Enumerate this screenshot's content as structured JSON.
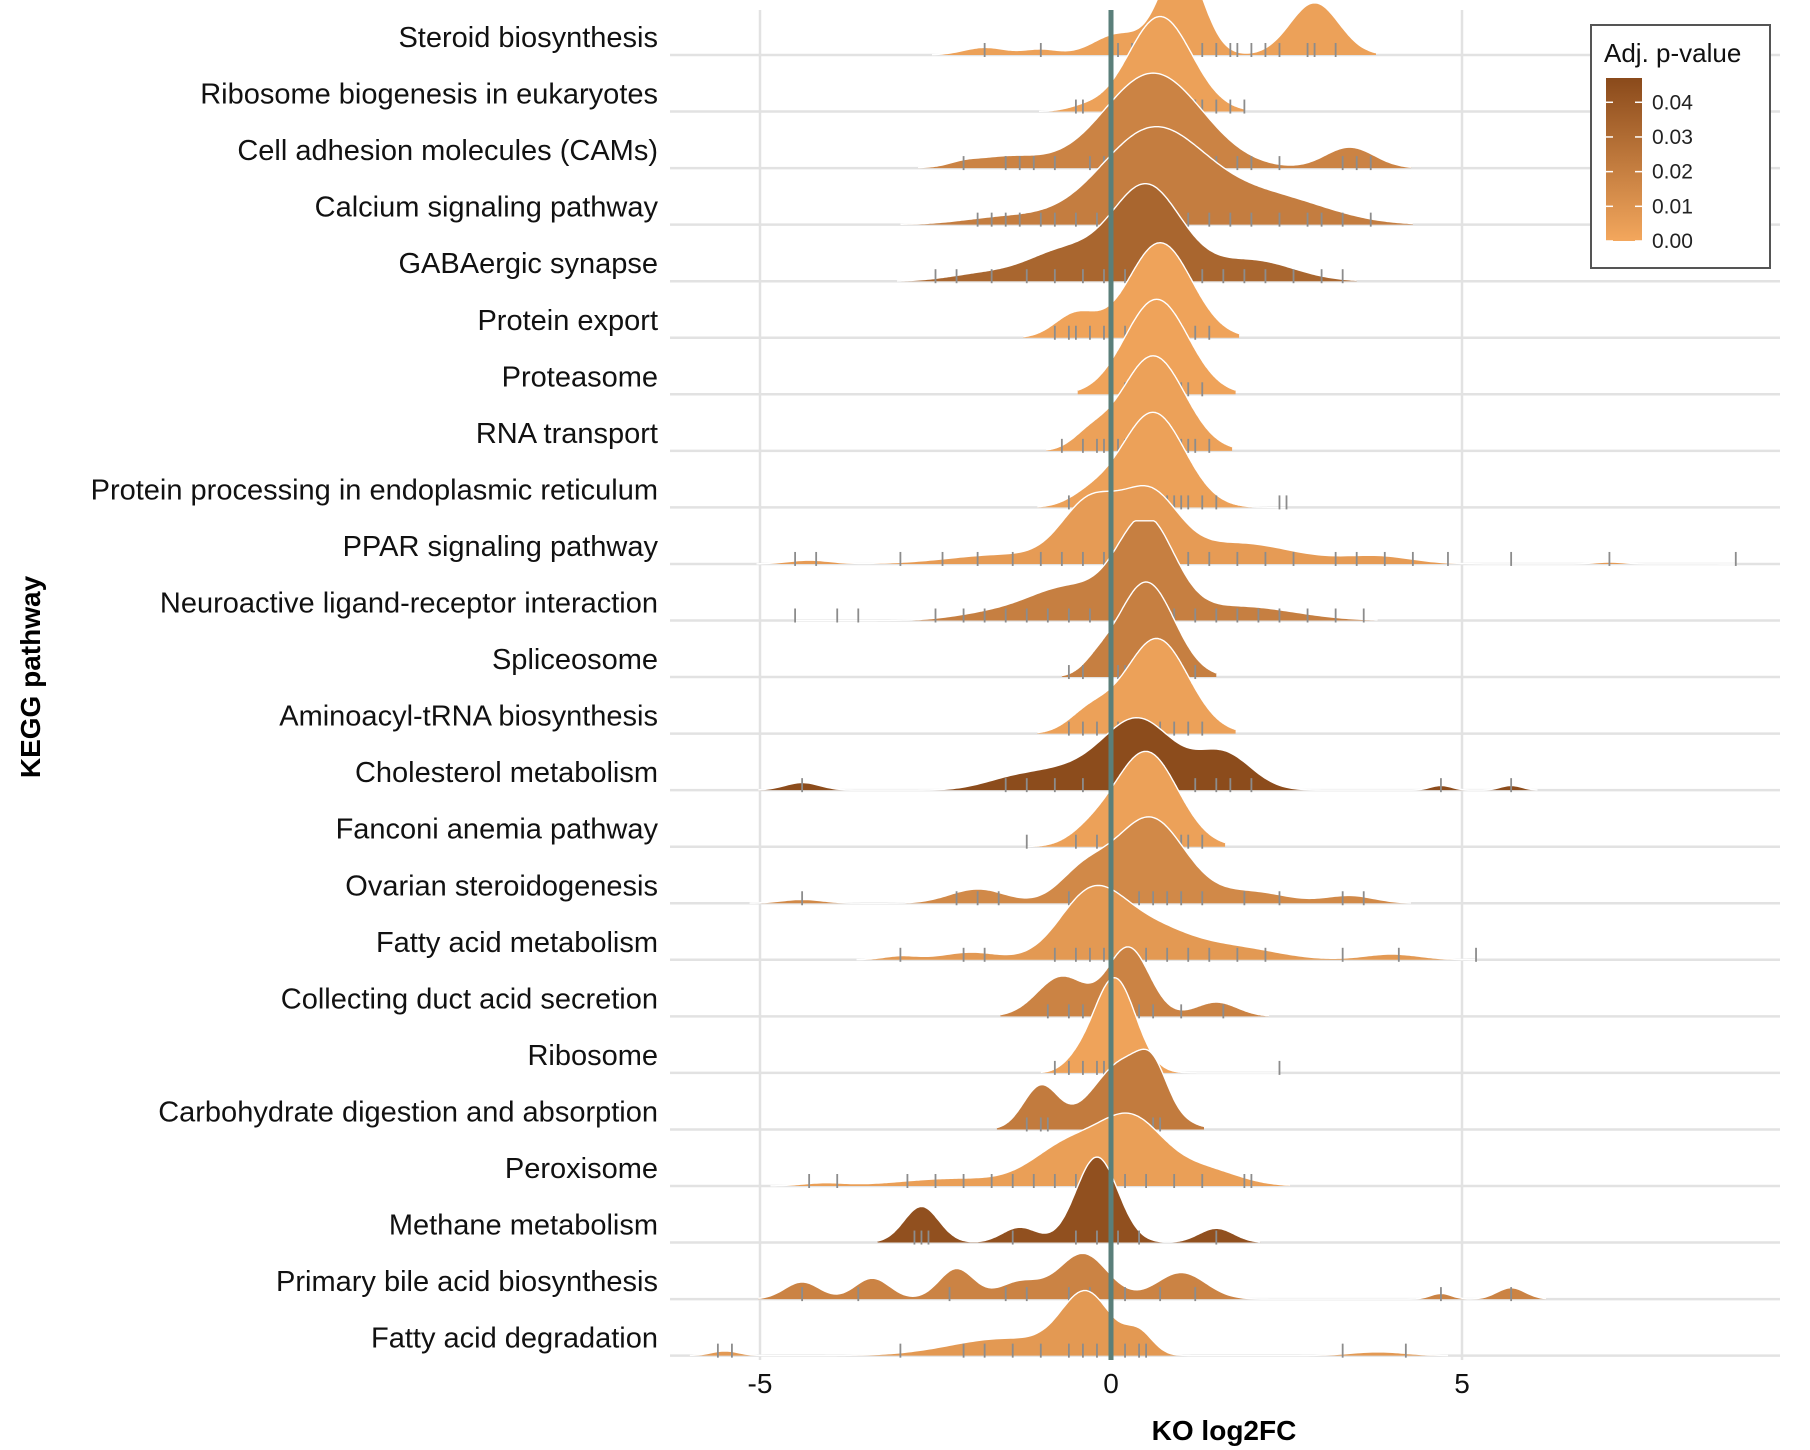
{
  "chart_data": {
    "type": "ridgeline",
    "xlabel": "KO log2FC",
    "ylabel": "KEGG pathway",
    "xlim": [
      -6.5,
      9.3
    ],
    "x_ticks": [
      -5,
      0,
      5
    ],
    "x_tick_labels": [
      "-5",
      "0",
      "5"
    ],
    "reference_line_x": 0,
    "reference_line_color": "#5a7f7a",
    "grid": true,
    "legend": {
      "title": "Adj. p-value",
      "position": "top-right",
      "ticks": [
        0.04,
        0.03,
        0.02,
        0.01,
        0.0
      ],
      "tick_labels": [
        "0.04",
        "0.03",
        "0.02",
        "0.01",
        "0.00"
      ],
      "range": [
        0,
        0.047
      ],
      "color_low": "#f3a75d",
      "color_high": "#8a4a1b"
    },
    "rug_color": "#8c8c8c",
    "pathways": [
      {
        "name": "Steroid biosynthesis",
        "padj": 0.003,
        "peaks": [
          [
            1.0,
            0.3,
            1.0
          ],
          [
            2.9,
            0.35,
            0.55
          ],
          [
            0.1,
            0.35,
            0.22
          ],
          [
            -1.8,
            0.3,
            0.08
          ],
          [
            -1.0,
            0.25,
            0.06
          ]
        ],
        "rug": [
          -1.8,
          -1.0,
          0.1,
          0.3,
          0.5,
          0.8,
          1.3,
          1.5,
          1.7,
          1.8,
          2.0,
          2.2,
          2.4,
          2.8,
          2.9,
          3.2
        ]
      },
      {
        "name": "Ribosome biogenesis in eukaryotes",
        "padj": 0.003,
        "peaks": [
          [
            0.7,
            0.45,
            1.0
          ],
          [
            -0.4,
            0.25,
            0.04
          ]
        ],
        "rug": [
          -0.5,
          -0.4,
          0.1,
          0.2,
          0.3,
          0.4,
          0.5,
          0.6,
          0.7,
          0.8,
          0.9,
          1.0,
          1.1,
          1.2,
          1.3,
          1.5,
          1.7,
          1.9
        ]
      },
      {
        "name": "Cell adhesion molecules (CAMs)",
        "padj": 0.018,
        "peaks": [
          [
            0.6,
            0.7,
            1.0
          ],
          [
            3.4,
            0.35,
            0.22
          ],
          [
            -1.5,
            0.5,
            0.12
          ],
          [
            -2.1,
            0.2,
            0.03
          ]
        ],
        "rug": [
          -2.1,
          -1.5,
          -1.3,
          -1.1,
          -0.8,
          -0.3,
          -0.1,
          0.1,
          0.3,
          0.5,
          0.7,
          0.9,
          1.1,
          1.3,
          1.5,
          1.8,
          2.0,
          2.4,
          3.3,
          3.5,
          3.7
        ]
      },
      {
        "name": "Calcium signaling pathway",
        "padj": 0.021,
        "peaks": [
          [
            0.6,
            0.75,
            1.0
          ],
          [
            2.3,
            0.8,
            0.28
          ],
          [
            -1.5,
            0.6,
            0.08
          ]
        ],
        "rug": [
          -1.9,
          -1.7,
          -1.5,
          -1.3,
          -1.0,
          -0.8,
          -0.5,
          -0.2,
          0.1,
          0.3,
          0.5,
          0.7,
          0.9,
          1.1,
          1.4,
          1.7,
          2.0,
          2.4,
          2.8,
          3.0,
          3.3,
          3.7
        ]
      },
      {
        "name": "GABAergic synapse",
        "padj": 0.033,
        "peaks": [
          [
            0.5,
            0.5,
            1.0
          ],
          [
            -0.7,
            0.5,
            0.3
          ],
          [
            2.0,
            0.6,
            0.22
          ],
          [
            -1.8,
            0.5,
            0.08
          ]
        ],
        "rug": [
          -2.5,
          -2.2,
          -1.7,
          -1.2,
          -0.8,
          -0.4,
          -0.1,
          0.2,
          0.4,
          0.6,
          0.8,
          1.0,
          1.3,
          1.6,
          1.9,
          2.2,
          2.6,
          3.0,
          3.3
        ]
      },
      {
        "name": "Protein export",
        "padj": 0.002,
        "peaks": [
          [
            0.7,
            0.45,
            1.0
          ],
          [
            -0.5,
            0.3,
            0.25
          ]
        ],
        "rug": [
          -0.8,
          -0.6,
          -0.5,
          -0.3,
          -0.1,
          0.2,
          0.4,
          0.6,
          0.8,
          1.0,
          1.2,
          1.4
        ]
      },
      {
        "name": "Proteasome",
        "padj": 0.002,
        "peaks": [
          [
            0.65,
            0.45,
            1.0
          ]
        ],
        "rug": [
          0.0,
          0.2,
          0.4,
          0.5,
          0.6,
          0.7,
          0.8,
          0.9,
          1.0,
          1.1,
          1.3
        ]
      },
      {
        "name": "RNA transport",
        "padj": 0.003,
        "peaks": [
          [
            0.6,
            0.45,
            1.0
          ],
          [
            -0.3,
            0.25,
            0.15
          ]
        ],
        "rug": [
          -0.7,
          -0.4,
          -0.2,
          -0.1,
          0.0,
          0.1,
          0.2,
          0.3,
          0.4,
          0.5,
          0.6,
          0.7,
          0.8,
          0.9,
          1.0,
          1.1,
          1.2,
          1.4
        ]
      },
      {
        "name": "Protein processing in endoplasmic reticulum",
        "padj": 0.003,
        "peaks": [
          [
            0.6,
            0.45,
            1.0
          ],
          [
            -0.3,
            0.3,
            0.12
          ]
        ],
        "rug": [
          -0.6,
          -0.3,
          -0.1,
          0.0,
          0.1,
          0.2,
          0.3,
          0.4,
          0.5,
          0.6,
          0.7,
          0.8,
          0.9,
          1.0,
          1.1,
          1.3,
          1.5,
          2.4,
          2.5
        ]
      },
      {
        "name": "PPAR signaling pathway",
        "padj": 0.006,
        "peaks": [
          [
            -0.3,
            0.4,
            0.62
          ],
          [
            0.55,
            0.4,
            0.68
          ],
          [
            1.8,
            0.8,
            0.22
          ],
          [
            -1.5,
            0.8,
            0.1
          ],
          [
            3.8,
            0.5,
            0.08
          ],
          [
            -4.3,
            0.3,
            0.04
          ],
          [
            7.1,
            0.2,
            0.02
          ]
        ],
        "rug": [
          -4.5,
          -4.2,
          -3.0,
          -2.4,
          -1.9,
          -1.4,
          -1.0,
          -0.7,
          -0.4,
          -0.1,
          0.2,
          0.5,
          0.8,
          1.1,
          1.4,
          1.8,
          2.2,
          2.6,
          3.2,
          3.5,
          3.9,
          4.3,
          4.8,
          5.7,
          7.1,
          8.9
        ]
      },
      {
        "name": "Neuroactive ligand-receptor interaction",
        "padj": 0.02,
        "peaks": [
          [
            0.5,
            0.4,
            1.0
          ],
          [
            -0.6,
            0.6,
            0.35
          ],
          [
            1.8,
            0.8,
            0.15
          ],
          [
            -1.8,
            0.5,
            0.06
          ]
        ],
        "rug": [
          -4.5,
          -3.9,
          -3.6,
          -2.5,
          -2.1,
          -1.8,
          -1.5,
          -1.2,
          -0.9,
          -0.6,
          -0.3,
          0.0,
          0.3,
          0.6,
          0.9,
          1.2,
          1.5,
          1.8,
          2.1,
          2.4,
          2.8,
          3.2,
          3.6
        ]
      },
      {
        "name": "Spliceosome",
        "padj": 0.02,
        "peaks": [
          [
            0.5,
            0.4,
            1.0
          ],
          [
            -0.2,
            0.2,
            0.1
          ]
        ],
        "rug": [
          -0.6,
          -0.4,
          0.1,
          0.2,
          0.3,
          0.4,
          0.5,
          0.6,
          0.7,
          0.8,
          0.9,
          1.0,
          1.2
        ]
      },
      {
        "name": "Aminoacyl-tRNA biosynthesis",
        "padj": 0.003,
        "peaks": [
          [
            0.65,
            0.45,
            1.0
          ],
          [
            -0.3,
            0.3,
            0.22
          ]
        ],
        "rug": [
          -0.6,
          -0.4,
          -0.2,
          0.1,
          0.3,
          0.5,
          0.7,
          0.9,
          1.1,
          1.3
        ]
      },
      {
        "name": "Cholesterol metabolism",
        "padj": 0.046,
        "peaks": [
          [
            0.4,
            0.5,
            0.72
          ],
          [
            1.6,
            0.4,
            0.38
          ],
          [
            -0.7,
            0.6,
            0.2
          ],
          [
            -1.5,
            0.4,
            0.06
          ],
          [
            -4.4,
            0.25,
            0.08
          ],
          [
            4.7,
            0.15,
            0.05
          ],
          [
            5.7,
            0.15,
            0.05
          ]
        ],
        "rug": [
          -4.4,
          -1.5,
          -1.2,
          -0.8,
          -0.4,
          0.0,
          0.3,
          0.5,
          0.8,
          1.2,
          1.5,
          1.7,
          2.0,
          4.7,
          5.7
        ]
      },
      {
        "name": "Fanconi anemia pathway",
        "padj": 0.003,
        "peaks": [
          [
            0.5,
            0.45,
            1.0
          ],
          [
            -0.3,
            0.3,
            0.12
          ]
        ],
        "rug": [
          -1.2,
          -0.5,
          -0.2,
          0.0,
          0.2,
          0.3,
          0.4,
          0.5,
          0.6,
          0.7,
          0.8,
          0.9,
          1.0,
          1.1,
          1.3
        ]
      },
      {
        "name": "Ovarian steroidogenesis",
        "padj": 0.015,
        "peaks": [
          [
            0.55,
            0.5,
            0.9
          ],
          [
            -0.4,
            0.35,
            0.3
          ],
          [
            2.0,
            0.5,
            0.12
          ],
          [
            -1.9,
            0.4,
            0.15
          ],
          [
            -4.4,
            0.3,
            0.04
          ],
          [
            3.4,
            0.35,
            0.08
          ]
        ],
        "rug": [
          -4.4,
          -2.2,
          -1.9,
          -1.6,
          -0.6,
          -0.3,
          0.1,
          0.4,
          0.6,
          0.8,
          1.0,
          1.3,
          1.9,
          2.4,
          3.3,
          3.6
        ]
      },
      {
        "name": "Fatty acid metabolism",
        "padj": 0.007,
        "peaks": [
          [
            -0.3,
            0.45,
            0.62
          ],
          [
            0.5,
            0.6,
            0.35
          ],
          [
            1.8,
            0.6,
            0.12
          ],
          [
            -2.0,
            0.4,
            0.08
          ],
          [
            4.0,
            0.4,
            0.06
          ],
          [
            -3.0,
            0.25,
            0.04
          ]
        ],
        "rug": [
          -3.0,
          -2.1,
          -1.8,
          -0.8,
          -0.5,
          -0.3,
          -0.1,
          0.2,
          0.5,
          0.8,
          1.1,
          1.4,
          1.8,
          2.2,
          3.3,
          4.1,
          5.2
        ]
      },
      {
        "name": "Collecting duct acid secretion",
        "padj": 0.018,
        "peaks": [
          [
            0.25,
            0.3,
            0.72
          ],
          [
            -0.7,
            0.35,
            0.42
          ],
          [
            1.5,
            0.3,
            0.15
          ]
        ],
        "rug": [
          -0.9,
          -0.6,
          -0.4,
          -0.2,
          0.0,
          0.2,
          0.4,
          0.6,
          1.0,
          1.6
        ]
      },
      {
        "name": "Ribosome",
        "padj": 0.002,
        "peaks": [
          [
            0.05,
            0.3,
            1.0
          ],
          [
            -0.5,
            0.2,
            0.08
          ]
        ],
        "rug": [
          -0.8,
          -0.6,
          -0.4,
          -0.2,
          -0.1,
          0.0,
          0.1,
          0.2,
          0.3,
          0.4,
          0.6,
          2.4
        ]
      },
      {
        "name": "Carbohydrate digestion and absorption",
        "padj": 0.022,
        "peaks": [
          [
            0.2,
            0.45,
            0.72
          ],
          [
            -1.0,
            0.25,
            0.45
          ],
          [
            0.6,
            0.2,
            0.3
          ]
        ],
        "rug": [
          -1.2,
          -1.0,
          -0.9,
          0.0,
          0.2,
          0.4,
          0.6,
          0.7
        ]
      },
      {
        "name": "Peroxisome",
        "padj": 0.004,
        "peaks": [
          [
            0.3,
            0.45,
            0.65
          ],
          [
            -0.6,
            0.5,
            0.42
          ],
          [
            1.3,
            0.5,
            0.18
          ],
          [
            -2.2,
            0.8,
            0.08
          ],
          [
            -4.1,
            0.3,
            0.03
          ]
        ],
        "rug": [
          -4.3,
          -3.9,
          -2.9,
          -2.5,
          -2.1,
          -1.7,
          -1.4,
          -1.1,
          -0.8,
          -0.5,
          -0.3,
          -0.1,
          0.2,
          0.5,
          0.9,
          1.3,
          1.9,
          2.0
        ]
      },
      {
        "name": "Methane metabolism",
        "padj": 0.044,
        "peaks": [
          [
            -0.2,
            0.3,
            0.9
          ],
          [
            -2.7,
            0.25,
            0.38
          ],
          [
            -1.3,
            0.25,
            0.16
          ],
          [
            1.5,
            0.25,
            0.15
          ]
        ],
        "rug": [
          -2.8,
          -2.7,
          -2.6,
          -1.4,
          -0.5,
          -0.2,
          0.1,
          0.4,
          1.5
        ]
      },
      {
        "name": "Primary bile acid biosynthesis",
        "padj": 0.018,
        "peaks": [
          [
            -0.4,
            0.35,
            0.48
          ],
          [
            1.0,
            0.35,
            0.28
          ],
          [
            -2.2,
            0.25,
            0.32
          ],
          [
            -3.4,
            0.25,
            0.22
          ],
          [
            -4.4,
            0.25,
            0.18
          ],
          [
            -1.3,
            0.3,
            0.18
          ],
          [
            4.7,
            0.15,
            0.06
          ],
          [
            5.7,
            0.2,
            0.12
          ]
        ],
        "rug": [
          -4.4,
          -3.6,
          -2.3,
          -1.5,
          -1.2,
          -0.6,
          -0.3,
          0.2,
          0.7,
          1.2,
          4.7,
          5.7
        ]
      },
      {
        "name": "Fatty acid degradation",
        "padj": 0.007,
        "peaks": [
          [
            -0.35,
            0.35,
            0.62
          ],
          [
            0.4,
            0.2,
            0.22
          ],
          [
            -1.5,
            0.8,
            0.18
          ],
          [
            -5.5,
            0.2,
            0.05
          ],
          [
            3.8,
            0.4,
            0.04
          ]
        ],
        "rug": [
          -5.6,
          -5.4,
          -3.0,
          -2.1,
          -1.8,
          -1.4,
          -1.0,
          -0.6,
          -0.4,
          -0.2,
          0.0,
          0.2,
          0.4,
          0.5,
          3.3,
          4.2
        ]
      }
    ]
  }
}
